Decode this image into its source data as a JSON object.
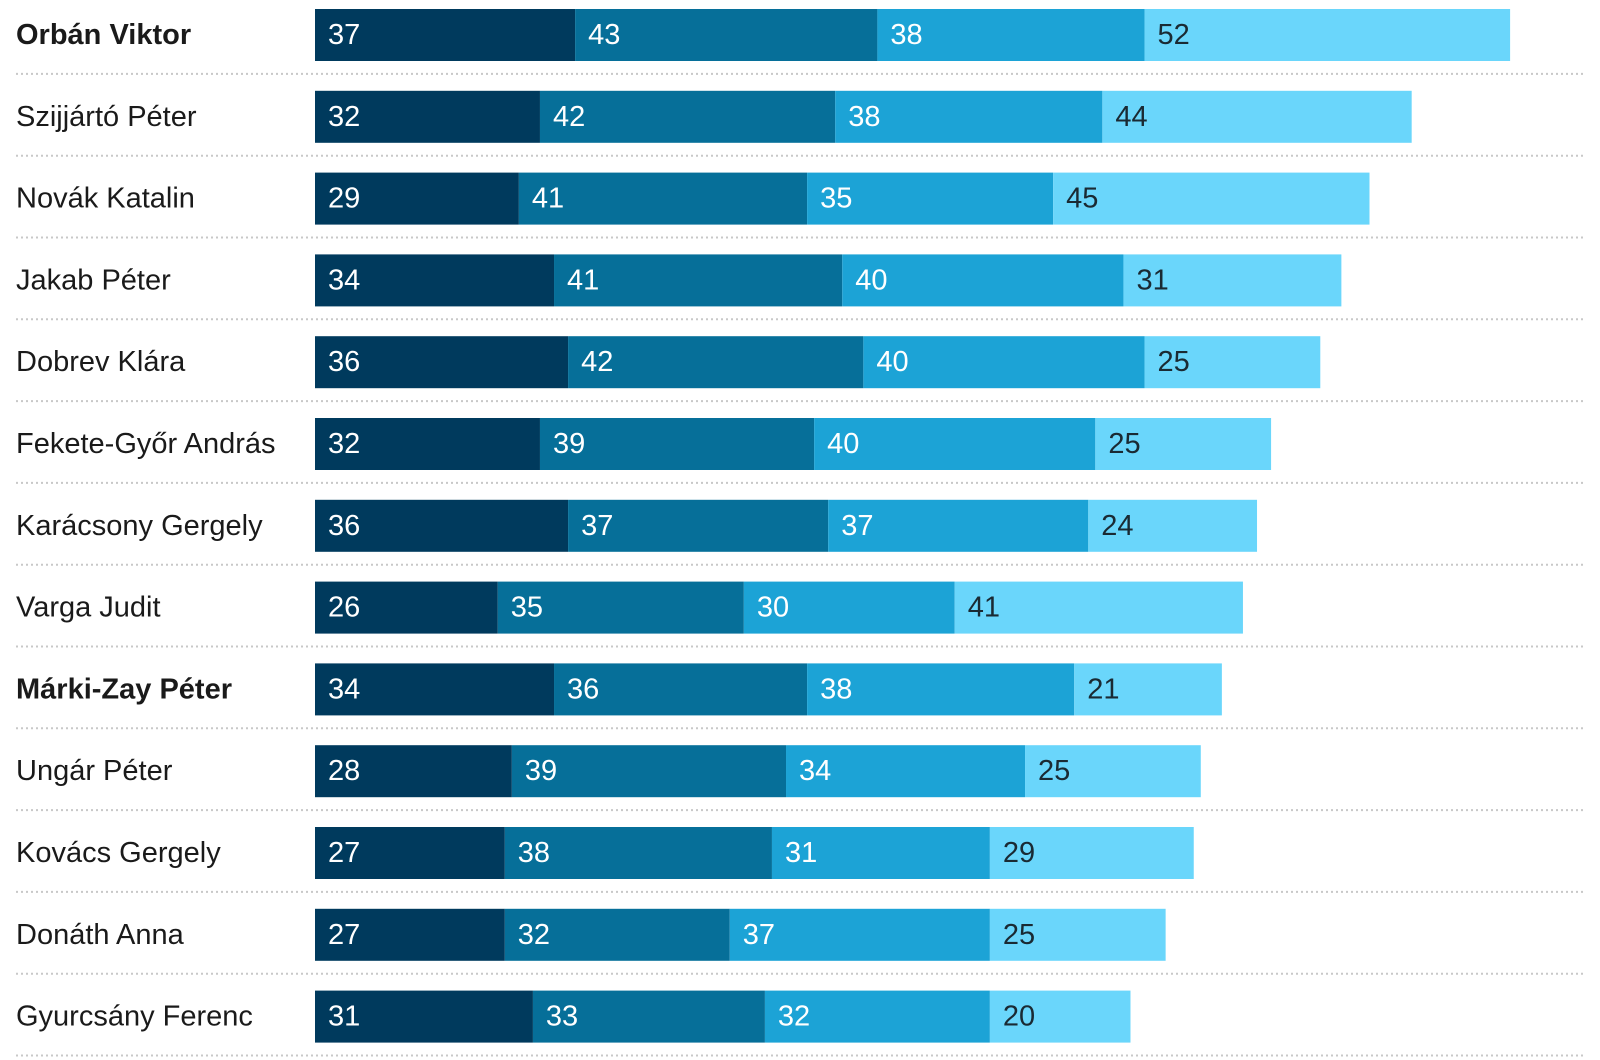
{
  "chart_data": {
    "type": "bar",
    "orientation": "horizontal",
    "stacked": true,
    "categories": [
      "Orbán Viktor",
      "Szijjártó Péter",
      "Novák Katalin",
      "Jakab Péter",
      "Dobrev Klára",
      "Fekete-Győr András",
      "Karácsony Gergely",
      "Varga Judit",
      "Márki-Zay Péter",
      "Ungár Péter",
      "Kovács Gergely",
      "Donáth Anna",
      "Gyurcsány Ferenc"
    ],
    "bold_categories": [
      "Orbán Viktor",
      "Márki-Zay Péter"
    ],
    "series": [
      {
        "color": "#003a5d",
        "label_color": "#ffffff",
        "values": [
          37,
          32,
          29,
          34,
          36,
          32,
          36,
          26,
          34,
          28,
          27,
          27,
          31
        ]
      },
      {
        "color": "#066f99",
        "label_color": "#ffffff",
        "values": [
          43,
          42,
          41,
          41,
          42,
          39,
          37,
          35,
          36,
          39,
          38,
          32,
          33
        ]
      },
      {
        "color": "#1ca3d6",
        "label_color": "#ffffff",
        "values": [
          38,
          38,
          35,
          40,
          40,
          40,
          37,
          30,
          38,
          34,
          31,
          37,
          32
        ]
      },
      {
        "color": "#6ad6fb",
        "label_color": "#1a2a33",
        "values": [
          52,
          44,
          45,
          31,
          25,
          25,
          24,
          41,
          21,
          25,
          29,
          25,
          20
        ]
      }
    ],
    "xlim": [
      0,
      170
    ],
    "grid": false,
    "legend": "none"
  }
}
